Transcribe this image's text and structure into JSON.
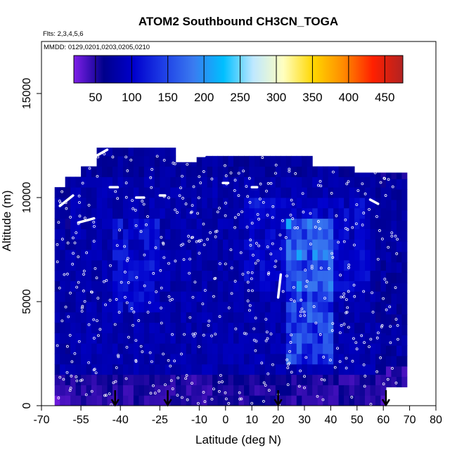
{
  "chart_data": {
    "type": "heatmap",
    "title": "ATOM2 Southbound CH3CN_TOGA",
    "flights_label": "Flts: 2,3,4,5,6",
    "dates_label": "MMDD: 0129,0201,0203,0205,0210",
    "xlabel": "Latitude (deg N)",
    "ylabel": "Altitude (m)",
    "xlim": [
      -70,
      80
    ],
    "ylim": [
      0,
      17500
    ],
    "x_ticks": [
      {
        "value": -70,
        "label": "-70"
      },
      {
        "value": -55,
        "label": "-55"
      },
      {
        "value": -40,
        "label": "-40"
      },
      {
        "value": -25,
        "label": "-25"
      },
      {
        "value": -10,
        "label": "-10"
      },
      {
        "value": 0,
        "label": "0"
      },
      {
        "value": 10,
        "label": "10"
      },
      {
        "value": 20,
        "label": "20"
      },
      {
        "value": 30,
        "label": "30"
      },
      {
        "value": 40,
        "label": "40"
      },
      {
        "value": 50,
        "label": "50"
      },
      {
        "value": 60,
        "label": "60"
      },
      {
        "value": 70,
        "label": "70"
      },
      {
        "value": 80,
        "label": "80"
      }
    ],
    "y_ticks": [
      {
        "value": 0,
        "label": "0"
      },
      {
        "value": 5000,
        "label": "5000"
      },
      {
        "value": 10000,
        "label": "10000"
      },
      {
        "value": 15000,
        "label": "15000"
      }
    ],
    "colorbar": {
      "min": 20,
      "max": 475,
      "ticks": [
        {
          "value": 50,
          "label": "50"
        },
        {
          "value": 100,
          "label": "100"
        },
        {
          "value": 150,
          "label": "150"
        },
        {
          "value": 200,
          "label": "200"
        },
        {
          "value": 250,
          "label": "250"
        },
        {
          "value": 300,
          "label": "300"
        },
        {
          "value": 350,
          "label": "350"
        },
        {
          "value": 400,
          "label": "400"
        },
        {
          "value": 450,
          "label": "450"
        }
      ],
      "colors": [
        "#7f1fe8",
        "#00008b",
        "#0000cd",
        "#1e3ee6",
        "#3a7bf0",
        "#00bfff",
        "#bfe8ff",
        "#ffffc0",
        "#ffd700",
        "#ff8c00",
        "#ff2000",
        "#b22222"
      ]
    },
    "arrow_latitudes": [
      -42,
      -22,
      20,
      61
    ],
    "grid": false
  }
}
